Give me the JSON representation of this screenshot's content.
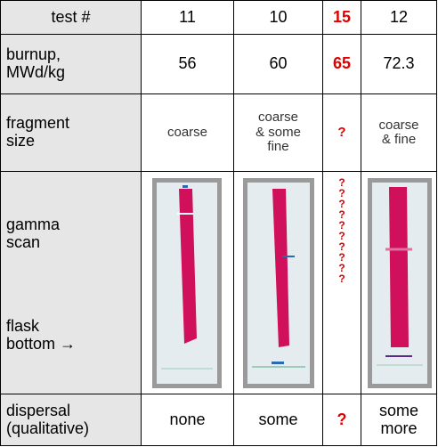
{
  "table": {
    "header": [
      "test #",
      "11",
      "10",
      "15",
      "12"
    ],
    "highlight_column": 3,
    "highlight_color": "#e00000",
    "rows": [
      {
        "label": [
          "burnup,",
          "MWd/kg"
        ],
        "cells": [
          [
            "56"
          ],
          [
            "60"
          ],
          [
            "65"
          ],
          [
            "72.3"
          ]
        ]
      },
      {
        "label": [
          "fragment",
          "size"
        ],
        "cells": [
          [
            "coarse"
          ],
          [
            "coarse",
            "& some",
            "fine"
          ],
          [
            "?"
          ],
          [
            "coarse",
            "& fine"
          ]
        ]
      },
      {
        "label": [
          "gamma",
          "scan"
        ],
        "label_bottom": [
          "flask",
          "bottom →"
        ],
        "cells": [
          [],
          [],
          [
            "?",
            "?",
            "?",
            "?",
            "?",
            "?",
            "?",
            "?",
            "?",
            "?"
          ],
          []
        ]
      },
      {
        "label": [
          "dispersal",
          "(qualitative)"
        ],
        "cells": [
          [
            "none"
          ],
          [
            "some"
          ],
          [
            "?"
          ],
          [
            "some",
            "more"
          ]
        ]
      }
    ]
  }
}
